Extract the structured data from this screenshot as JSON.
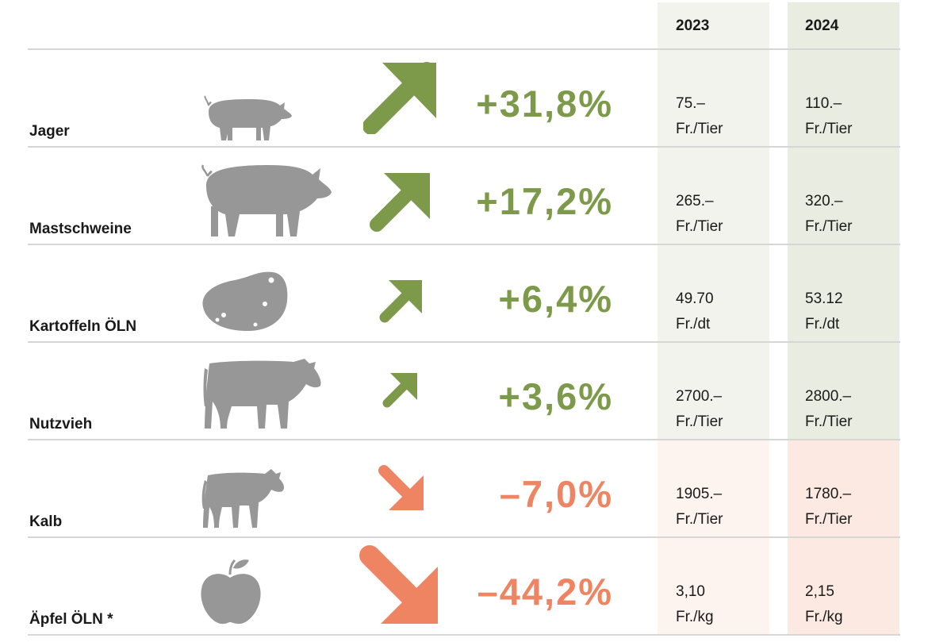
{
  "columns": [
    "2023",
    "2024"
  ],
  "colors": {
    "up": "#7c9a4a",
    "down": "#ef8463",
    "icon": "#979797"
  },
  "chart_data": {
    "type": "table",
    "columns": [
      "2023",
      "2024"
    ],
    "rows": [
      {
        "label": "Jager",
        "icon": "pig-icon",
        "trend": "up",
        "change": "+31,8%",
        "change_value": 31.8,
        "v2023": "75.–",
        "u2023": "Fr./Tier",
        "v2024": "110.–",
        "u2024": "Fr./Tier"
      },
      {
        "label": "Mastschweine",
        "icon": "pig-large-icon",
        "trend": "up",
        "change": "+17,2%",
        "change_value": 17.2,
        "v2023": "265.–",
        "u2023": "Fr./Tier",
        "v2024": "320.–",
        "u2024": "Fr./Tier"
      },
      {
        "label": "Kartoffeln ÖLN",
        "icon": "potato-icon",
        "trend": "up",
        "change": "+6,4%",
        "change_value": 6.4,
        "v2023": "49.70",
        "u2023": "Fr./dt",
        "v2024": "53.12",
        "u2024": "Fr./dt"
      },
      {
        "label": "Nutzvieh",
        "icon": "cow-icon",
        "trend": "up",
        "change": "+3,6%",
        "change_value": 3.6,
        "v2023": "2700.–",
        "u2023": "Fr./Tier",
        "v2024": "2800.–",
        "u2024": "Fr./Tier"
      },
      {
        "label": "Kalb",
        "icon": "calf-icon",
        "trend": "down",
        "change": "–7,0%",
        "change_value": -7.0,
        "v2023": "1905.–",
        "u2023": "Fr./Tier",
        "v2024": "1780.–",
        "u2024": "Fr./Tier"
      },
      {
        "label": "Äpfel ÖLN *",
        "icon": "apple-icon",
        "trend": "down",
        "change": "–44,2%",
        "change_value": -44.2,
        "v2023": "3,10",
        "u2023": "Fr./kg",
        "v2024": "2,15",
        "u2024": "Fr./kg"
      }
    ]
  }
}
